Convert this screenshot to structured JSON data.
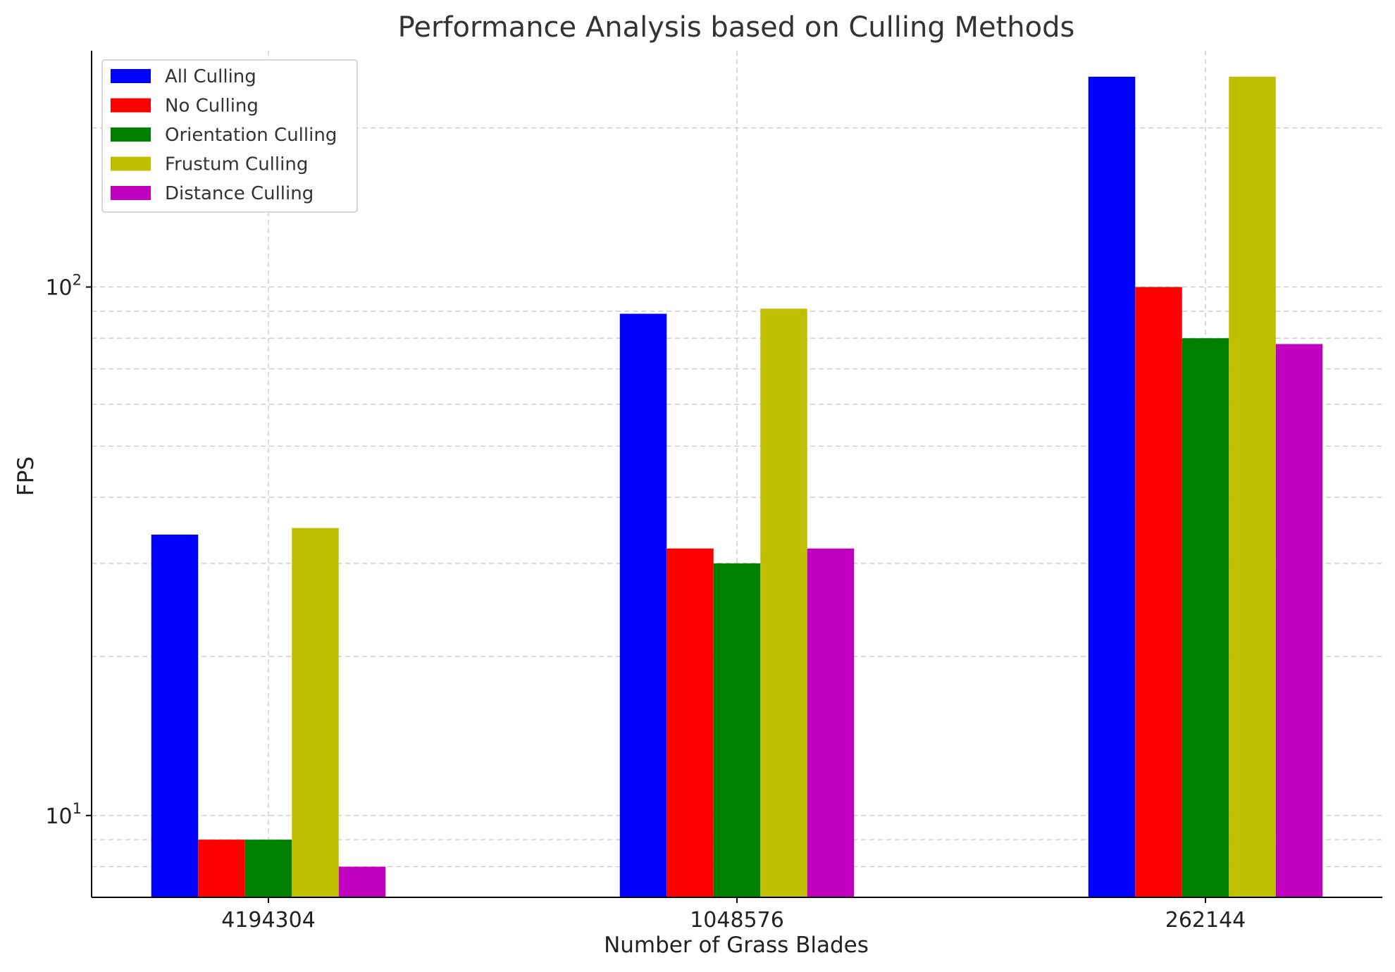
{
  "chart_data": {
    "type": "bar",
    "title": "Performance Analysis based on Culling Methods",
    "xlabel": "Number of Grass Blades",
    "ylabel": "FPS",
    "yscale": "log",
    "ylim": [
      7,
      280
    ],
    "yticks": [
      {
        "value": 10,
        "base": "10",
        "exp": "1"
      },
      {
        "value": 100,
        "base": "10",
        "exp": "2"
      }
    ],
    "grid": true,
    "legend_position": "top-left",
    "categories": [
      "4194304",
      "1048576",
      "262144"
    ],
    "series": [
      {
        "name": "All Culling",
        "color": "#0000ff",
        "values": [
          34,
          89,
          250
        ]
      },
      {
        "name": "No Culling",
        "color": "#ff0000",
        "values": [
          9,
          32,
          100
        ]
      },
      {
        "name": "Orientation Culling",
        "color": "#008000",
        "values": [
          9,
          30,
          80
        ]
      },
      {
        "name": "Frustum Culling",
        "color": "#bfbf00",
        "values": [
          35,
          91,
          250
        ]
      },
      {
        "name": "Distance Culling",
        "color": "#bf00bf",
        "values": [
          8,
          32,
          78
        ]
      }
    ]
  }
}
